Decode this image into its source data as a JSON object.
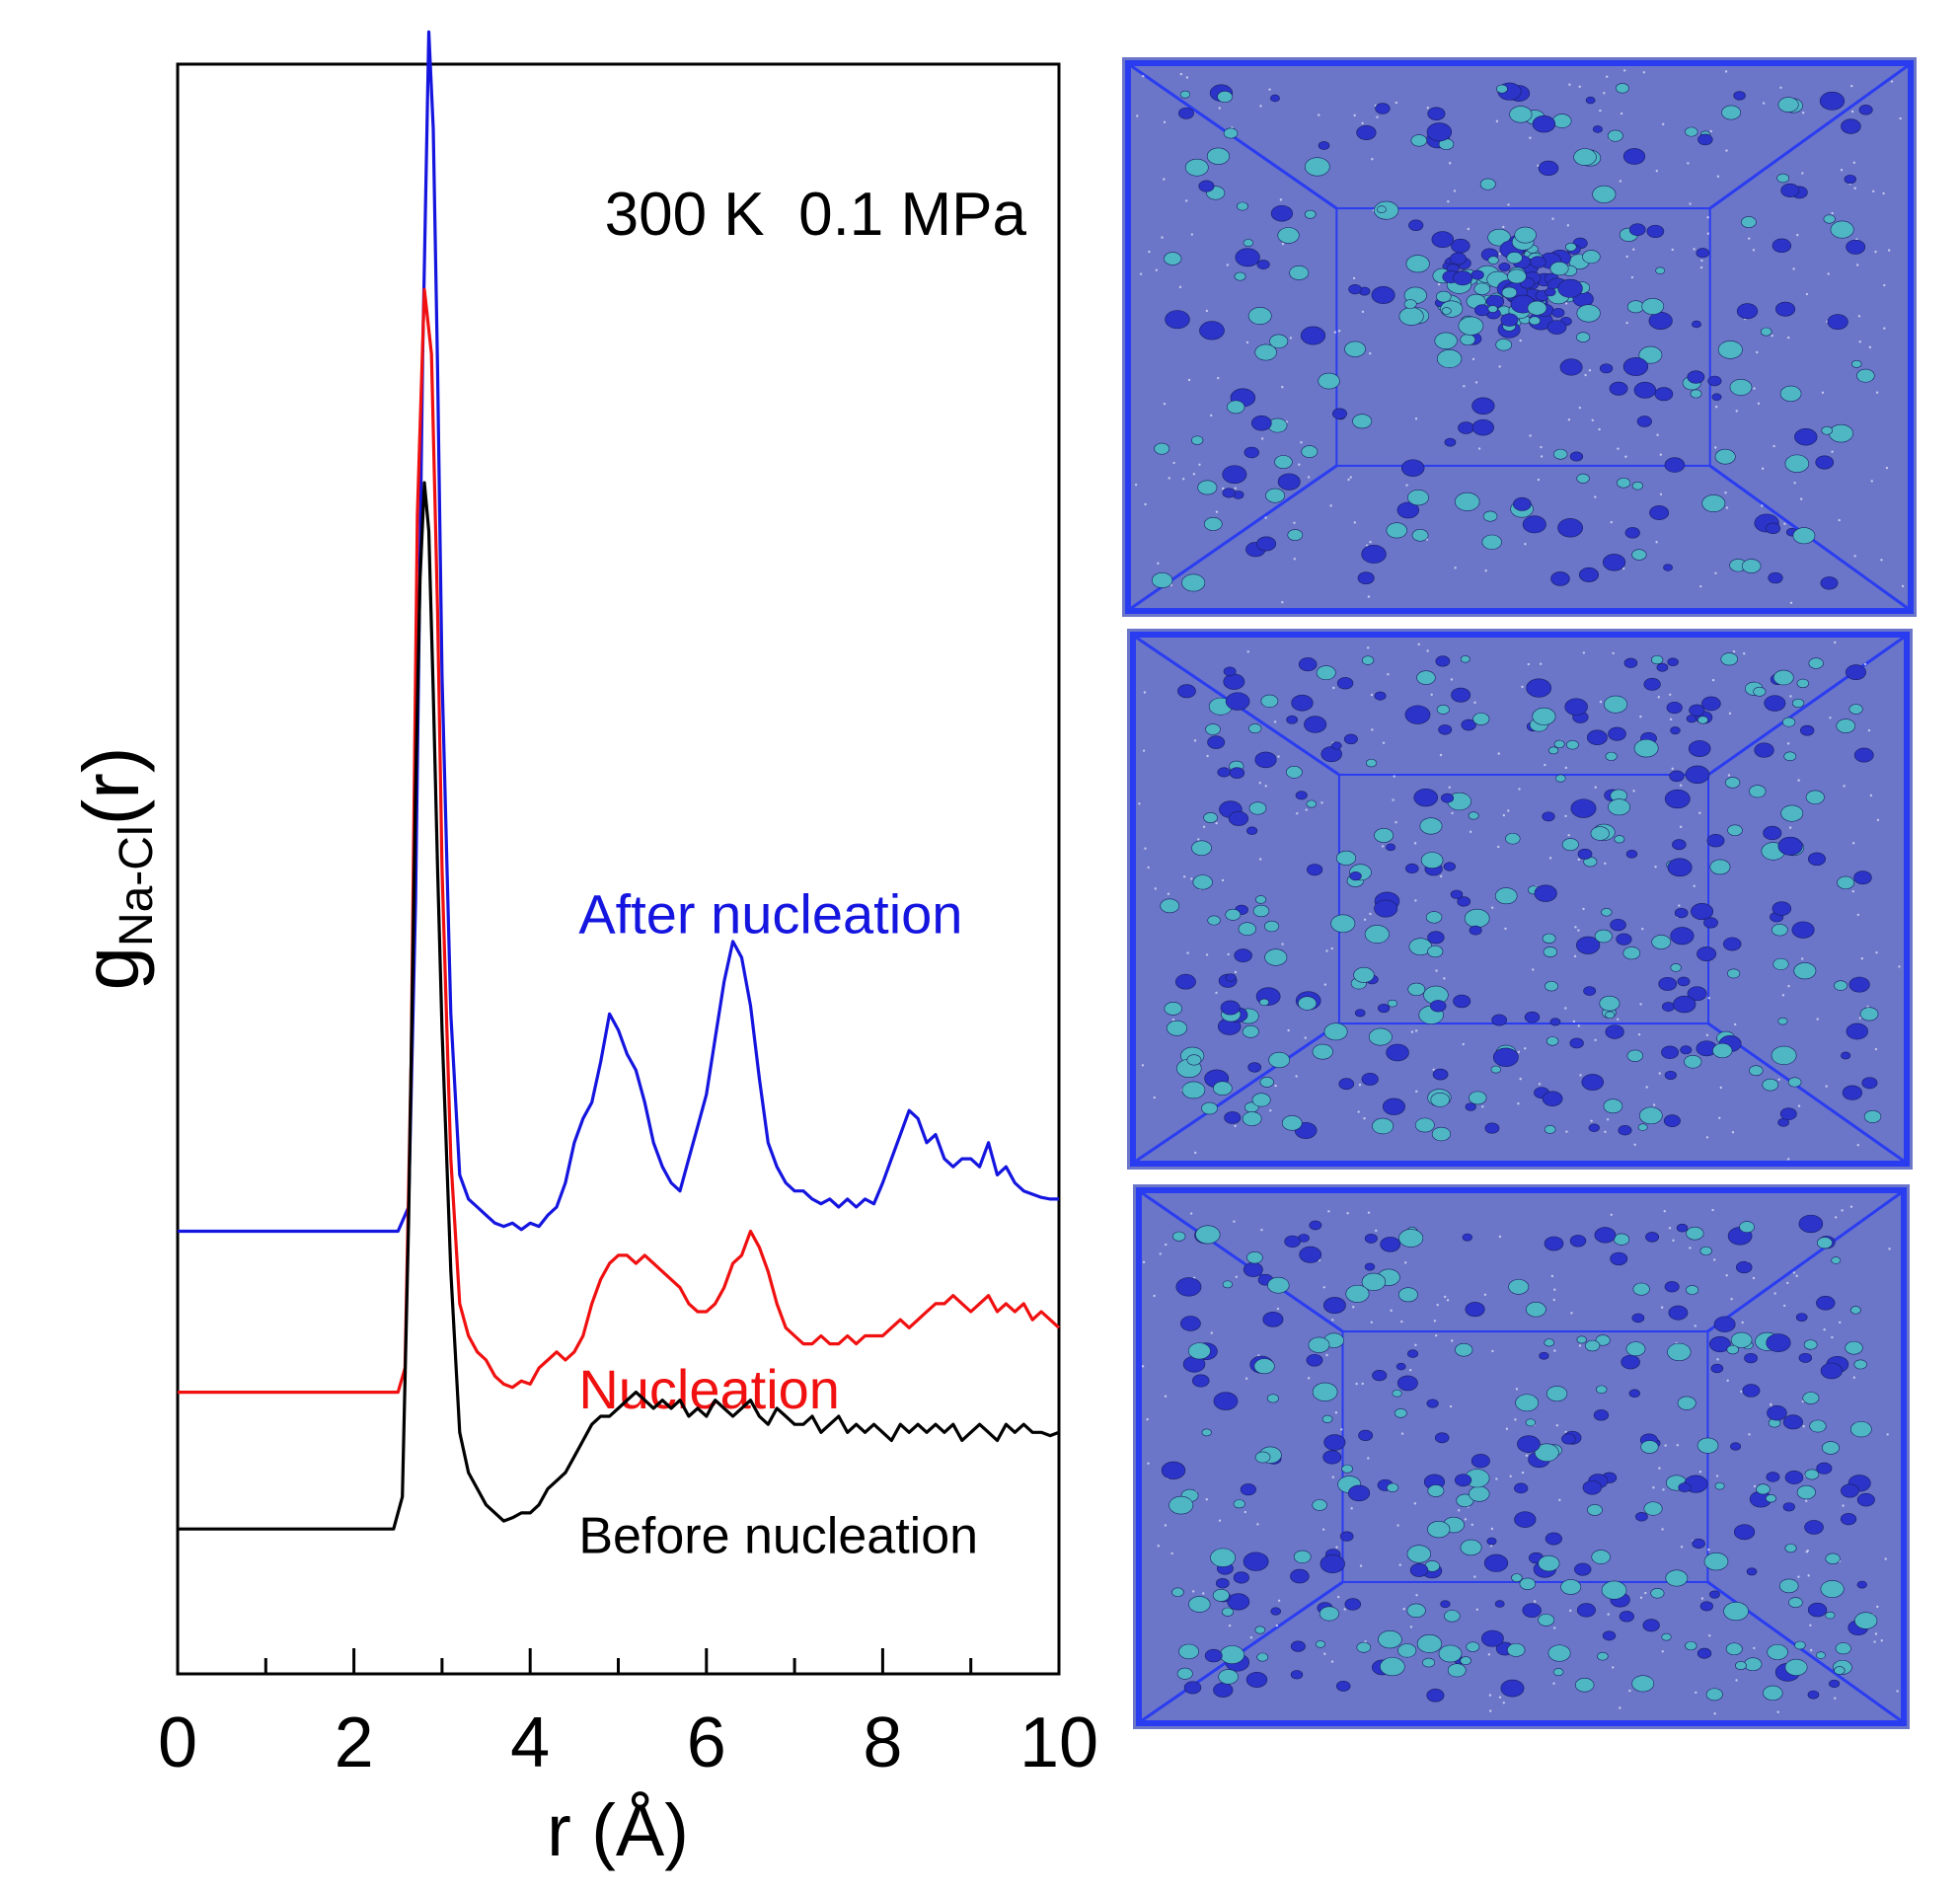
{
  "chart_data": {
    "type": "line",
    "title": "300 K  0.1 MPa",
    "xlabel": "r (Å)",
    "ylabel_main": "g",
    "ylabel_sub": "Na-Cl",
    "ylabel_tail": "(r)",
    "xlim": [
      0,
      10
    ],
    "ylim": [
      0,
      10
    ],
    "xticks": [
      0,
      2,
      4,
      6,
      8,
      10
    ],
    "xtick_labels": [
      "0",
      "2",
      "4",
      "6",
      "8",
      "10"
    ],
    "minor_xticks": [
      1,
      3,
      5,
      7,
      9
    ],
    "yticks": [],
    "grid": false,
    "legend": "inline labels",
    "series": [
      {
        "name": "After nucleation",
        "color": "#1515e0",
        "label_x": 4.55,
        "label_y": 4.6,
        "x": [
          0,
          2.5,
          2.62,
          2.7,
          2.78,
          2.85,
          2.9,
          2.95,
          3.0,
          3.1,
          3.2,
          3.3,
          3.4,
          3.5,
          3.6,
          3.7,
          3.8,
          3.9,
          4.0,
          4.1,
          4.2,
          4.3,
          4.4,
          4.5,
          4.6,
          4.7,
          4.8,
          4.9,
          5.0,
          5.1,
          5.2,
          5.3,
          5.4,
          5.5,
          5.6,
          5.7,
          5.8,
          5.9,
          6.0,
          6.1,
          6.2,
          6.3,
          6.4,
          6.5,
          6.6,
          6.7,
          6.8,
          6.9,
          7.0,
          7.1,
          7.2,
          7.3,
          7.4,
          7.5,
          7.6,
          7.7,
          7.8,
          7.9,
          8.0,
          8.1,
          8.2,
          8.3,
          8.4,
          8.5,
          8.6,
          8.7,
          8.8,
          8.9,
          9.0,
          9.1,
          9.2,
          9.3,
          9.4,
          9.5,
          9.6,
          9.7,
          9.8,
          9.9,
          10.0
        ],
        "y": [
          2.75,
          2.75,
          2.9,
          4.8,
          8.2,
          10.2,
          9.6,
          8.1,
          6.2,
          4.1,
          3.1,
          2.95,
          2.9,
          2.85,
          2.8,
          2.78,
          2.8,
          2.76,
          2.8,
          2.78,
          2.85,
          2.9,
          3.05,
          3.3,
          3.45,
          3.55,
          3.8,
          4.1,
          4.0,
          3.85,
          3.75,
          3.55,
          3.3,
          3.15,
          3.05,
          3.0,
          3.2,
          3.4,
          3.6,
          3.95,
          4.3,
          4.55,
          4.45,
          4.15,
          3.7,
          3.3,
          3.15,
          3.05,
          3.0,
          3.0,
          2.95,
          2.92,
          2.95,
          2.9,
          2.95,
          2.9,
          2.95,
          2.92,
          3.05,
          3.2,
          3.35,
          3.5,
          3.45,
          3.3,
          3.35,
          3.2,
          3.15,
          3.2,
          3.2,
          3.15,
          3.3,
          3.1,
          3.15,
          3.05,
          3.0,
          2.98,
          2.96,
          2.95,
          2.95
        ]
      },
      {
        "name": "Nucleation",
        "color": "#f01010",
        "label_x": 4.55,
        "label_y": 1.65,
        "x": [
          0,
          2.5,
          2.58,
          2.65,
          2.72,
          2.8,
          2.88,
          2.95,
          3.0,
          3.1,
          3.2,
          3.3,
          3.4,
          3.5,
          3.6,
          3.7,
          3.8,
          3.9,
          4.0,
          4.1,
          4.2,
          4.3,
          4.4,
          4.5,
          4.6,
          4.7,
          4.8,
          4.9,
          5.0,
          5.1,
          5.2,
          5.3,
          5.4,
          5.5,
          5.6,
          5.7,
          5.8,
          5.9,
          6.0,
          6.1,
          6.2,
          6.3,
          6.4,
          6.5,
          6.6,
          6.7,
          6.8,
          6.9,
          7.0,
          7.1,
          7.2,
          7.3,
          7.4,
          7.5,
          7.6,
          7.7,
          7.8,
          7.9,
          8.0,
          8.1,
          8.2,
          8.3,
          8.4,
          8.5,
          8.6,
          8.7,
          8.8,
          8.9,
          9.0,
          9.1,
          9.2,
          9.3,
          9.4,
          9.5,
          9.6,
          9.7,
          9.8,
          9.9,
          10.0
        ],
        "y": [
          1.75,
          1.75,
          1.9,
          3.8,
          7.2,
          8.6,
          8.2,
          6.6,
          5.0,
          3.2,
          2.3,
          2.1,
          2.0,
          1.95,
          1.85,
          1.8,
          1.78,
          1.82,
          1.8,
          1.9,
          1.95,
          2.0,
          1.95,
          2.0,
          2.1,
          2.3,
          2.45,
          2.55,
          2.6,
          2.6,
          2.55,
          2.6,
          2.55,
          2.5,
          2.45,
          2.4,
          2.3,
          2.25,
          2.25,
          2.3,
          2.4,
          2.55,
          2.6,
          2.75,
          2.65,
          2.5,
          2.3,
          2.15,
          2.1,
          2.05,
          2.05,
          2.1,
          2.05,
          2.05,
          2.1,
          2.05,
          2.1,
          2.1,
          2.1,
          2.15,
          2.2,
          2.15,
          2.2,
          2.25,
          2.3,
          2.3,
          2.35,
          2.3,
          2.25,
          2.3,
          2.35,
          2.25,
          2.3,
          2.25,
          2.3,
          2.2,
          2.25,
          2.2,
          2.15
        ]
      },
      {
        "name": "Before nucleation",
        "color": "#000000",
        "label_x": 4.55,
        "label_y": 0.75,
        "x": [
          0,
          2.45,
          2.55,
          2.62,
          2.7,
          2.75,
          2.8,
          2.85,
          2.9,
          2.95,
          3.0,
          3.1,
          3.2,
          3.3,
          3.4,
          3.5,
          3.6,
          3.7,
          3.8,
          3.9,
          4.0,
          4.1,
          4.2,
          4.3,
          4.4,
          4.5,
          4.6,
          4.7,
          4.8,
          4.9,
          5.0,
          5.1,
          5.2,
          5.3,
          5.4,
          5.5,
          5.6,
          5.7,
          5.8,
          5.9,
          6.0,
          6.1,
          6.2,
          6.3,
          6.4,
          6.5,
          6.6,
          6.7,
          6.8,
          6.9,
          7.0,
          7.1,
          7.2,
          7.3,
          7.4,
          7.5,
          7.6,
          7.7,
          7.8,
          7.9,
          8.0,
          8.1,
          8.2,
          8.3,
          8.4,
          8.5,
          8.6,
          8.7,
          8.8,
          8.9,
          9.0,
          9.1,
          9.2,
          9.3,
          9.4,
          9.5,
          9.6,
          9.7,
          9.8,
          9.9,
          10.0
        ],
        "y": [
          0.9,
          0.9,
          1.1,
          2.8,
          5.5,
          6.8,
          7.4,
          7.1,
          6.1,
          5.0,
          4.0,
          2.5,
          1.5,
          1.25,
          1.15,
          1.05,
          1.0,
          0.95,
          0.97,
          1.0,
          1.0,
          1.05,
          1.15,
          1.2,
          1.25,
          1.35,
          1.45,
          1.55,
          1.6,
          1.6,
          1.65,
          1.7,
          1.75,
          1.7,
          1.65,
          1.7,
          1.65,
          1.7,
          1.6,
          1.65,
          1.6,
          1.7,
          1.65,
          1.6,
          1.65,
          1.7,
          1.6,
          1.55,
          1.65,
          1.6,
          1.55,
          1.55,
          1.6,
          1.5,
          1.55,
          1.6,
          1.5,
          1.55,
          1.5,
          1.55,
          1.5,
          1.45,
          1.55,
          1.5,
          1.55,
          1.5,
          1.55,
          1.5,
          1.55,
          1.45,
          1.5,
          1.55,
          1.5,
          1.45,
          1.55,
          1.5,
          1.55,
          1.5,
          1.5,
          1.48,
          1.5
        ]
      }
    ]
  },
  "snapshots": [
    {
      "name": "after-nucleation-snapshot",
      "state": "clustered",
      "seed": 11
    },
    {
      "name": "nucleation-snapshot",
      "state": "partial",
      "seed": 23
    },
    {
      "name": "before-nucleation-snapshot",
      "state": "dispersed",
      "seed": 37
    }
  ],
  "colors": {
    "snapshot_bg": "#6b76c9",
    "snapshot_border": "#2a3cf0",
    "na_ion": "#2b33c8",
    "cl_ion": "#4fb6c4"
  }
}
